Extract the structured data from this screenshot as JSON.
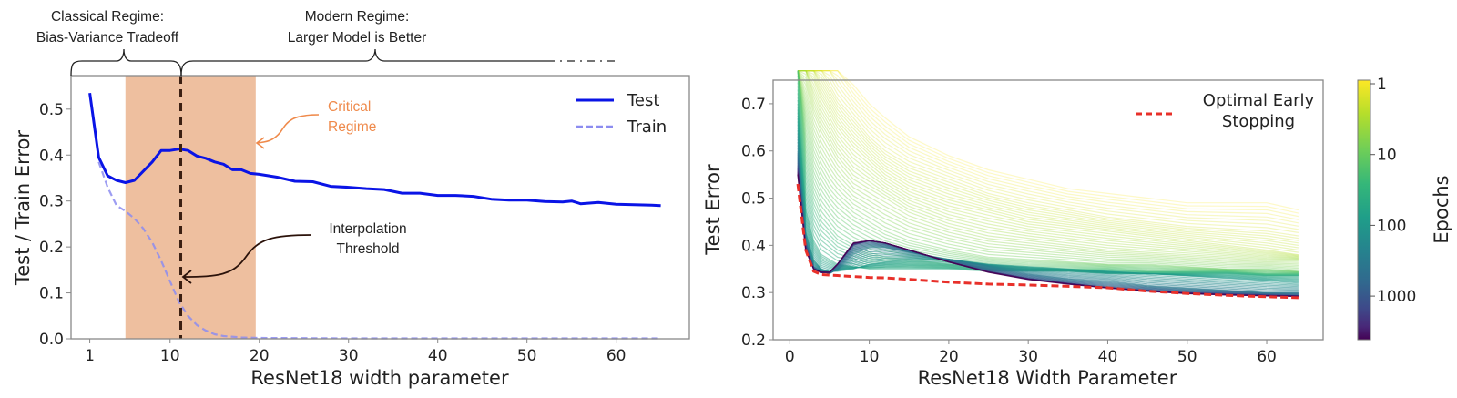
{
  "chart_data": [
    {
      "type": "line",
      "xlabel": "ResNet18 width parameter",
      "ylabel": "Test / Train Error",
      "xlim": [
        -1.1,
        68.2
      ],
      "ylim": [
        0.0,
        0.573
      ],
      "xticks": [
        1,
        10,
        20,
        30,
        40,
        50,
        60
      ],
      "yticks": [
        "0.0",
        "0.1",
        "0.2",
        "0.3",
        "0.4",
        "0.5"
      ],
      "grid": false,
      "legend_position": "top-right",
      "series": [
        {
          "name": "Test",
          "color": "#0a14e6",
          "style": "solid",
          "x": [
            1,
            2,
            3,
            4,
            5,
            6,
            7,
            8,
            9,
            10,
            11,
            12,
            13,
            14,
            15,
            16,
            17,
            18,
            19,
            20,
            22,
            24,
            26,
            28,
            30,
            32,
            34,
            36,
            38,
            40,
            42,
            44,
            46,
            48,
            50,
            52,
            54,
            55,
            56,
            58,
            60,
            62,
            64,
            65
          ],
          "y": [
            0.535,
            0.395,
            0.355,
            0.345,
            0.34,
            0.345,
            0.365,
            0.385,
            0.41,
            0.41,
            0.413,
            0.41,
            0.398,
            0.393,
            0.385,
            0.38,
            0.368,
            0.368,
            0.36,
            0.358,
            0.352,
            0.343,
            0.342,
            0.332,
            0.33,
            0.327,
            0.325,
            0.317,
            0.317,
            0.312,
            0.312,
            0.31,
            0.304,
            0.302,
            0.302,
            0.299,
            0.298,
            0.3,
            0.294,
            0.297,
            0.293,
            0.292,
            0.291,
            0.29
          ]
        },
        {
          "name": "Train",
          "color": "#8c8cf0",
          "style": "dashed",
          "x": [
            2,
            3,
            4,
            5,
            6,
            7,
            8,
            9,
            10,
            11,
            12,
            13,
            14,
            15,
            16,
            18,
            20,
            30,
            40,
            50,
            65
          ],
          "y": [
            0.385,
            0.33,
            0.29,
            0.278,
            0.262,
            0.24,
            0.21,
            0.17,
            0.125,
            0.08,
            0.05,
            0.03,
            0.018,
            0.01,
            0.006,
            0.003,
            0.002,
            0.001,
            0.001,
            0.001,
            0.001
          ]
        }
      ],
      "shaded_region": {
        "x": [
          5.0,
          19.6
        ],
        "color": "#eebf9f"
      },
      "vertical_line": {
        "x": 11.2,
        "color": "#3b1f12"
      },
      "annotations": {
        "critical": {
          "lines": [
            "Critical",
            "Regime"
          ],
          "color": "#ef8a4b"
        },
        "interpolation": {
          "lines": [
            "Interpolation",
            "Threshold"
          ]
        },
        "classical": {
          "lines": [
            "Classical Regime:",
            "Bias-Variance Tradeoff"
          ]
        },
        "modern": {
          "lines": [
            "Modern Regime:",
            "Larger Model is Better"
          ]
        }
      }
    },
    {
      "type": "line",
      "xlabel": "ResNet18 Width Parameter",
      "ylabel": "Test Error",
      "xlim": [
        -2.1,
        67.1
      ],
      "ylim": [
        0.2,
        0.75
      ],
      "xticks": [
        0,
        10,
        20,
        30,
        40,
        50,
        60
      ],
      "yticks": [
        "0.2",
        "0.3",
        "0.4",
        "0.5",
        "0.6",
        "0.7"
      ],
      "grid": false,
      "legend_position": "top-right",
      "widths": [
        1,
        2,
        3,
        4,
        5,
        6,
        8,
        10,
        12,
        15,
        20,
        25,
        30,
        35,
        40,
        45,
        50,
        55,
        60,
        64
      ],
      "epoch_curves": [
        {
          "epochs": 1,
          "y": [
            0.9,
            0.9,
            0.88,
            0.85,
            0.82,
            0.79,
            0.74,
            0.7,
            0.67,
            0.63,
            0.59,
            0.56,
            0.54,
            0.52,
            0.51,
            0.5,
            0.49,
            0.49,
            0.49,
            0.475
          ]
        },
        {
          "epochs": 2,
          "y": [
            0.88,
            0.85,
            0.8,
            0.77,
            0.74,
            0.71,
            0.67,
            0.63,
            0.6,
            0.57,
            0.54,
            0.51,
            0.49,
            0.475,
            0.46,
            0.45,
            0.44,
            0.435,
            0.43,
            0.42
          ]
        },
        {
          "epochs": 3,
          "y": [
            0.86,
            0.8,
            0.75,
            0.71,
            0.68,
            0.65,
            0.61,
            0.58,
            0.55,
            0.52,
            0.49,
            0.47,
            0.45,
            0.44,
            0.43,
            0.42,
            0.41,
            0.4,
            0.39,
            0.38
          ]
        },
        {
          "epochs": 5,
          "y": [
            0.84,
            0.74,
            0.68,
            0.64,
            0.61,
            0.58,
            0.54,
            0.52,
            0.5,
            0.47,
            0.44,
            0.42,
            0.41,
            0.4,
            0.39,
            0.385,
            0.38,
            0.375,
            0.37,
            0.37
          ]
        },
        {
          "epochs": 10,
          "y": [
            0.8,
            0.66,
            0.59,
            0.55,
            0.52,
            0.5,
            0.47,
            0.45,
            0.43,
            0.41,
            0.39,
            0.375,
            0.37,
            0.365,
            0.36,
            0.36,
            0.355,
            0.35,
            0.35,
            0.345
          ]
        },
        {
          "epochs": 20,
          "y": [
            0.76,
            0.57,
            0.5,
            0.46,
            0.44,
            0.42,
            0.4,
            0.385,
            0.375,
            0.37,
            0.36,
            0.355,
            0.35,
            0.35,
            0.35,
            0.345,
            0.345,
            0.345,
            0.34,
            0.34
          ]
        },
        {
          "epochs": 50,
          "y": [
            0.7,
            0.48,
            0.41,
            0.38,
            0.37,
            0.36,
            0.355,
            0.35,
            0.35,
            0.35,
            0.35,
            0.345,
            0.345,
            0.345,
            0.34,
            0.34,
            0.34,
            0.34,
            0.335,
            0.335
          ]
        },
        {
          "epochs": 100,
          "y": [
            0.65,
            0.43,
            0.37,
            0.35,
            0.345,
            0.345,
            0.35,
            0.36,
            0.365,
            0.37,
            0.37,
            0.36,
            0.355,
            0.35,
            0.345,
            0.34,
            0.335,
            0.33,
            0.325,
            0.32
          ]
        },
        {
          "epochs": 300,
          "y": [
            0.6,
            0.41,
            0.355,
            0.345,
            0.34,
            0.35,
            0.38,
            0.395,
            0.395,
            0.385,
            0.37,
            0.355,
            0.34,
            0.33,
            0.325,
            0.315,
            0.31,
            0.305,
            0.3,
            0.3
          ]
        },
        {
          "epochs": 1000,
          "y": [
            0.57,
            0.4,
            0.35,
            0.342,
            0.342,
            0.36,
            0.4,
            0.41,
            0.405,
            0.39,
            0.365,
            0.345,
            0.33,
            0.32,
            0.31,
            0.305,
            0.3,
            0.298,
            0.295,
            0.293
          ]
        },
        {
          "epochs": 4000,
          "y": [
            0.55,
            0.39,
            0.35,
            0.343,
            0.343,
            0.36,
            0.405,
            0.41,
            0.405,
            0.39,
            0.365,
            0.343,
            0.328,
            0.318,
            0.31,
            0.303,
            0.298,
            0.295,
            0.293,
            0.292
          ]
        }
      ],
      "optimal_early_stopping": {
        "name": "Optimal Early Stopping",
        "legend_lines": [
          "Optimal Early",
          "Stopping"
        ],
        "color": "#e8302a",
        "style": "dashed",
        "y": [
          0.53,
          0.39,
          0.345,
          0.338,
          0.337,
          0.336,
          0.334,
          0.332,
          0.331,
          0.328,
          0.322,
          0.318,
          0.316,
          0.313,
          0.31,
          0.303,
          0.298,
          0.294,
          0.291,
          0.289
        ]
      },
      "colorbar": {
        "label": "Epochs",
        "scale": "log",
        "colormap": "viridis (reversed)",
        "range": [
          1,
          4000
        ],
        "ticks": [
          "1",
          "10",
          "100",
          "1000"
        ]
      }
    }
  ]
}
